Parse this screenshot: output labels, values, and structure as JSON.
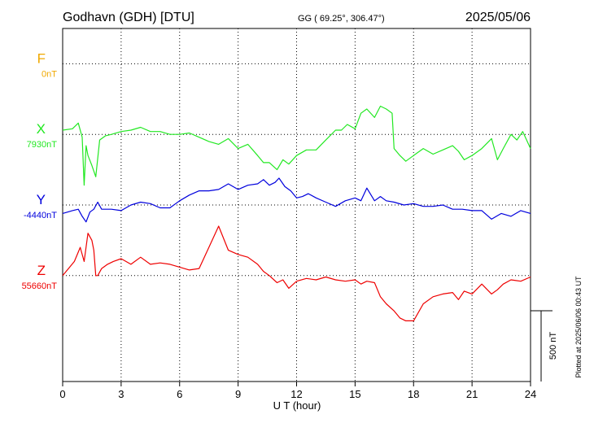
{
  "header": {
    "station": "Godhavn (GDH)  [DTU]",
    "coords": "GG ( 69.25°, 306.47°)",
    "date": "2025/05/06"
  },
  "footer": {
    "plotted_note": "Plotted at 2025/06/06 00:43 UT"
  },
  "chart_data": {
    "type": "line",
    "xlabel": "U T (hour)",
    "xlim": [
      0,
      24
    ],
    "x_ticks": [
      "0",
      "3",
      "6",
      "9",
      "12",
      "15",
      "18",
      "21",
      "24"
    ],
    "scale_bar_label": "500 nT",
    "units_per_row": 500,
    "series": [
      {
        "name": "F",
        "baseline_label": "0nT",
        "color": "#f0a800",
        "baseline_row": 1,
        "x": [],
        "values": []
      },
      {
        "name": "X",
        "baseline_label": "7930nT",
        "color": "#22e822",
        "baseline_row": 3,
        "x": [
          0,
          0.5,
          0.8,
          1.0,
          1.1,
          1.2,
          1.3,
          1.5,
          1.7,
          1.9,
          2.2,
          2.5,
          3,
          3.5,
          4,
          4.5,
          5,
          5.5,
          6,
          6.5,
          7,
          7.5,
          8,
          8.5,
          9,
          9.5,
          10,
          10.3,
          10.6,
          11,
          11.3,
          11.6,
          12,
          12.5,
          13,
          13.5,
          14,
          14.3,
          14.6,
          15,
          15.3,
          15.6,
          16,
          16.3,
          16.6,
          16.9,
          17,
          17.3,
          17.6,
          18,
          18.5,
          19,
          19.5,
          20,
          20.3,
          20.6,
          21,
          21.5,
          22,
          22.3,
          22.6,
          23,
          23.3,
          23.6,
          24
        ],
        "values": [
          30,
          40,
          80,
          -20,
          -360,
          -80,
          -150,
          -220,
          -300,
          -40,
          -10,
          0,
          20,
          30,
          50,
          20,
          20,
          0,
          0,
          10,
          -20,
          -50,
          -70,
          -30,
          -100,
          -70,
          -150,
          -200,
          -200,
          -250,
          -180,
          -210,
          -150,
          -110,
          -110,
          -40,
          30,
          30,
          70,
          40,
          150,
          180,
          120,
          200,
          180,
          150,
          -100,
          -150,
          -190,
          -150,
          -100,
          -140,
          -110,
          -80,
          -120,
          -180,
          -150,
          -100,
          -30,
          -180,
          -100,
          0,
          -40,
          20,
          -100
        ]
      },
      {
        "name": "Y",
        "baseline_label": "-4440nT",
        "color": "#0000dd",
        "baseline_row": 5,
        "x": [
          0,
          0.5,
          0.8,
          1.0,
          1.2,
          1.4,
          1.6,
          1.8,
          2.0,
          2.5,
          3,
          3.5,
          4,
          4.5,
          5,
          5.5,
          6,
          6.5,
          7,
          7.5,
          8,
          8.5,
          9,
          9.5,
          10,
          10.3,
          10.6,
          10.9,
          11.1,
          11.4,
          11.7,
          12,
          12.3,
          12.6,
          13,
          13.5,
          14,
          14.5,
          15,
          15.3,
          15.6,
          16,
          16.3,
          16.6,
          17,
          17.5,
          18,
          18.5,
          19,
          19.5,
          20,
          20.5,
          21,
          21.5,
          22,
          22.5,
          23,
          23.5,
          24
        ],
        "values": [
          -60,
          -40,
          -30,
          -80,
          -120,
          -50,
          -30,
          20,
          -30,
          -30,
          -40,
          0,
          20,
          10,
          -20,
          -20,
          30,
          70,
          100,
          100,
          110,
          150,
          110,
          140,
          150,
          180,
          140,
          160,
          190,
          130,
          100,
          50,
          60,
          80,
          50,
          20,
          -10,
          30,
          50,
          30,
          120,
          30,
          60,
          30,
          20,
          0,
          10,
          -10,
          -10,
          0,
          -30,
          -30,
          -40,
          -40,
          -100,
          -60,
          -80,
          -40,
          -60
        ]
      },
      {
        "name": "Z",
        "baseline_label": "55660nT",
        "color": "#ee0000",
        "baseline_row": 7,
        "x": [
          0,
          0.3,
          0.6,
          0.9,
          1.1,
          1.3,
          1.5,
          1.6,
          1.7,
          1.8,
          2.0,
          2.3,
          2.6,
          3,
          3.5,
          4,
          4.5,
          5,
          5.5,
          6,
          6.5,
          7,
          7.5,
          8,
          8.5,
          9,
          9.5,
          10,
          10.3,
          10.6,
          11,
          11.3,
          11.6,
          12,
          12.5,
          13,
          13.5,
          14,
          14.5,
          15,
          15.3,
          15.6,
          16,
          16.3,
          16.6,
          17,
          17.3,
          17.6,
          18,
          18.5,
          19,
          19.5,
          20,
          20.3,
          20.6,
          21,
          21.5,
          22,
          22.3,
          22.6,
          23,
          23.5,
          24
        ],
        "values": [
          0,
          50,
          100,
          200,
          100,
          300,
          250,
          180,
          0,
          0,
          50,
          80,
          100,
          120,
          80,
          130,
          80,
          90,
          80,
          60,
          40,
          50,
          200,
          350,
          180,
          150,
          130,
          80,
          30,
          0,
          -50,
          -30,
          -90,
          -40,
          -20,
          -30,
          -10,
          -30,
          -40,
          -30,
          -60,
          -40,
          -50,
          -150,
          -200,
          -250,
          -300,
          -320,
          -320,
          -200,
          -150,
          -130,
          -120,
          -170,
          -110,
          -130,
          -60,
          -130,
          -100,
          -60,
          -30,
          -40,
          -10
        ]
      }
    ]
  }
}
